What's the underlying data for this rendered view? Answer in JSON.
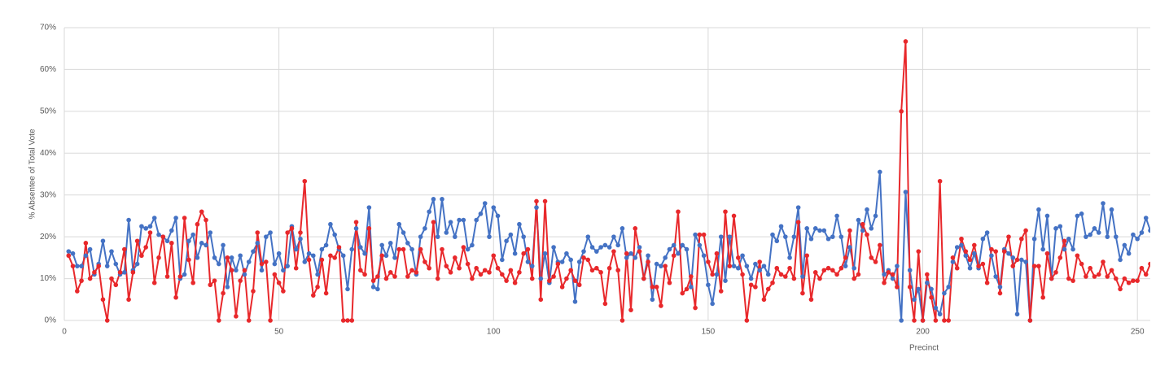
{
  "chart_data": {
    "type": "line",
    "x_label": "Precinct",
    "y_label": "% Absentee of Total Vote",
    "x": [
      1,
      2,
      3,
      4,
      5,
      6,
      7,
      8,
      9,
      10,
      11,
      12,
      13,
      14,
      15,
      16,
      17,
      18,
      19,
      20,
      21,
      22,
      23,
      24,
      25,
      26,
      27,
      28,
      29,
      30,
      31,
      32,
      33,
      34,
      35,
      36,
      37,
      38,
      39,
      40,
      41,
      42,
      43,
      44,
      45,
      46,
      47,
      48,
      49,
      50,
      51,
      52,
      53,
      54,
      55,
      56,
      57,
      58,
      59,
      60,
      61,
      62,
      63,
      64,
      65,
      66,
      67,
      68,
      69,
      70,
      71,
      72,
      73,
      74,
      75,
      76,
      77,
      78,
      79,
      80,
      81,
      82,
      83,
      84,
      85,
      86,
      87,
      88,
      89,
      90,
      91,
      92,
      93,
      94,
      95,
      96,
      97,
      98,
      99,
      100,
      101,
      102,
      103,
      104,
      105,
      106,
      107,
      108,
      109,
      110,
      111,
      112,
      113,
      114,
      115,
      116,
      117,
      118,
      119,
      120,
      121,
      122,
      123,
      124,
      125,
      126,
      127,
      128,
      129,
      130,
      131,
      132,
      133,
      134,
      135,
      136,
      137,
      138,
      139,
      140,
      141,
      142,
      143,
      144,
      145,
      146,
      147,
      148,
      149,
      150,
      151,
      152,
      153,
      154,
      155,
      156,
      157,
      158,
      159,
      160,
      161,
      162,
      163,
      164,
      165,
      166,
      167,
      168,
      169,
      170,
      171,
      172,
      173,
      174,
      175,
      176,
      177,
      178,
      179,
      180,
      181,
      182,
      183,
      184,
      185,
      186,
      187,
      188,
      189,
      190,
      191,
      192,
      193,
      194,
      195,
      196,
      197,
      198,
      199,
      200,
      201,
      202,
      203,
      204,
      205,
      206,
      207,
      208,
      209,
      210,
      211,
      212,
      213,
      214,
      215,
      216,
      217,
      218,
      219,
      220,
      221,
      222,
      223,
      224,
      225,
      226,
      227,
      228,
      229,
      230,
      231,
      232,
      233,
      234,
      235,
      236,
      237,
      238,
      239,
      240,
      241,
      242,
      243,
      244,
      245,
      246,
      247,
      248,
      249,
      250,
      251,
      252,
      253
    ],
    "series": [
      {
        "color": "#4472c4",
        "values": [
          16.5,
          16,
          13,
          13,
          15.5,
          17,
          11,
          13.5,
          19,
          13,
          16.5,
          13.5,
          11,
          11.5,
          24,
          12,
          13.5,
          22.5,
          22,
          22.5,
          24.5,
          20.5,
          20,
          19,
          21.5,
          24.5,
          10,
          11,
          19,
          20.5,
          15,
          18.5,
          18,
          21,
          15,
          13.5,
          18,
          8,
          15,
          12,
          15.5,
          11,
          14,
          16.5,
          18.5,
          12,
          20,
          21,
          13.5,
          16,
          12,
          13,
          22.5,
          17,
          19.5,
          14,
          16,
          15.5,
          11,
          17,
          18,
          23,
          20.5,
          17,
          15.5,
          7.5,
          17,
          22,
          17.5,
          16,
          27,
          8,
          7.5,
          18,
          15.5,
          18.5,
          15,
          23,
          21,
          18.5,
          17,
          11,
          20,
          22,
          26,
          29,
          20,
          29,
          21,
          23.5,
          20,
          24,
          24,
          17,
          18,
          24,
          25.5,
          28,
          20,
          27,
          25,
          14.5,
          19,
          20.5,
          16,
          23,
          20,
          14,
          13,
          27,
          10,
          16,
          9,
          17.5,
          14,
          14,
          16,
          14.5,
          4.5,
          14,
          16.5,
          20,
          17.5,
          16.5,
          17.5,
          18,
          17.5,
          20,
          18,
          22,
          15,
          16,
          15,
          17.5,
          10,
          15.5,
          5,
          13.5,
          13,
          15,
          17,
          18,
          16,
          18,
          17,
          8,
          20.5,
          18,
          15.5,
          8.5,
          4,
          11,
          20,
          9.5,
          20,
          13,
          12.5,
          15.5,
          13,
          10,
          13.5,
          12,
          13,
          11,
          20.5,
          19,
          22.5,
          20,
          15,
          20,
          27,
          10.5,
          22,
          19.5,
          22,
          21.5,
          21.5,
          19.5,
          20,
          25,
          20,
          13,
          17.5,
          12.5,
          24,
          21.5,
          26.5,
          22,
          25,
          35.5,
          11,
          12,
          10,
          13,
          0,
          30.7,
          12,
          5,
          7.5,
          0,
          9,
          7.5,
          3,
          1.5,
          6.5,
          8,
          14,
          17.5,
          18,
          15.5,
          12.5,
          16,
          12.5,
          19.5,
          21,
          15.5,
          10.5,
          8,
          17,
          16,
          15,
          1.5,
          14.5,
          14,
          0,
          19.5,
          26.5,
          17,
          25,
          10,
          22,
          22.5,
          17,
          19.5,
          17,
          25,
          25.5,
          20,
          20.5,
          22,
          21,
          28,
          20,
          26.5,
          20,
          14.5,
          18,
          16,
          20.5,
          19.5,
          21,
          24.5,
          21.5
        ]
      },
      {
        "color": "#e8282b",
        "values": [
          15.5,
          13,
          7,
          9.5,
          18.5,
          10,
          11.5,
          13,
          5,
          0,
          10,
          8.5,
          11.5,
          17,
          5,
          11.5,
          19,
          15.5,
          17.5,
          21,
          9,
          15,
          20,
          10.5,
          18.5,
          5.5,
          10.5,
          24.5,
          14.5,
          9,
          23,
          26,
          24,
          8.5,
          9.5,
          0,
          6.5,
          15,
          12,
          1,
          9.5,
          12,
          0,
          7,
          21,
          13.5,
          14,
          0,
          11,
          9,
          7,
          21,
          22,
          12.5,
          21,
          33.3,
          14.5,
          6,
          8,
          14.5,
          6.5,
          15.5,
          15,
          17.5,
          0,
          0,
          0,
          23.5,
          12,
          11,
          22,
          9.5,
          10.5,
          15.5,
          10,
          11.5,
          10.5,
          17,
          17,
          10.5,
          12,
          11.5,
          17,
          14,
          12.5,
          23.5,
          10,
          17,
          13,
          11.5,
          15,
          12.5,
          17.5,
          13.5,
          10,
          12.5,
          11,
          12,
          11.5,
          15.5,
          12.5,
          11,
          9.5,
          12,
          9,
          11.5,
          16,
          17,
          10,
          28.5,
          5,
          28.5,
          9.5,
          10.5,
          13.5,
          8,
          10,
          12,
          9.5,
          8.5,
          15,
          14.5,
          12,
          12.5,
          11.5,
          4,
          12.5,
          16.5,
          12,
          0,
          16,
          2.5,
          22,
          16.5,
          10,
          14,
          8,
          8,
          3.5,
          13,
          9,
          15.5,
          26,
          6.5,
          7.5,
          10.5,
          3,
          20.5,
          20.5,
          14,
          11,
          16,
          7,
          26,
          13,
          25,
          15,
          11,
          0,
          8.5,
          8,
          14,
          5,
          7.5,
          9,
          12.5,
          11,
          10.5,
          12.5,
          10,
          23.5,
          6.5,
          15.5,
          5,
          11.5,
          10,
          12,
          12.5,
          12,
          11,
          12.5,
          15,
          21.5,
          10,
          11,
          23,
          20.5,
          15,
          14,
          18,
          9,
          11.5,
          11,
          8,
          50,
          66.7,
          8,
          0,
          16.5,
          0,
          11,
          5.5,
          0,
          33.3,
          0,
          0,
          15,
          12.5,
          19.5,
          16.5,
          14.5,
          18,
          13,
          13.5,
          9,
          17,
          16.5,
          6.5,
          16.5,
          20,
          13,
          14.5,
          19.5,
          21.5,
          0,
          13,
          13,
          5.5,
          16,
          10,
          11.5,
          15,
          19,
          10,
          9.5,
          15.5,
          13.5,
          10.5,
          12.5,
          10.5,
          11,
          14,
          10.5,
          12,
          10,
          7.5,
          10,
          9,
          9.5,
          9.5,
          12.5,
          11,
          13.5
        ]
      }
    ],
    "xlim": [
      0,
      253
    ],
    "xticks": [
      0,
      50,
      100,
      150,
      200,
      250
    ],
    "ylim": [
      0,
      70
    ],
    "yticks": [
      {
        "value": 0,
        "label": "0%"
      },
      {
        "value": 10,
        "label": "10%"
      },
      {
        "value": 20,
        "label": "20%"
      },
      {
        "value": 30,
        "label": "30%"
      },
      {
        "value": 40,
        "label": "40%"
      },
      {
        "value": 50,
        "label": "50%"
      },
      {
        "value": 60,
        "label": "60%"
      },
      {
        "value": 70,
        "label": "70%"
      }
    ],
    "grid": true
  }
}
